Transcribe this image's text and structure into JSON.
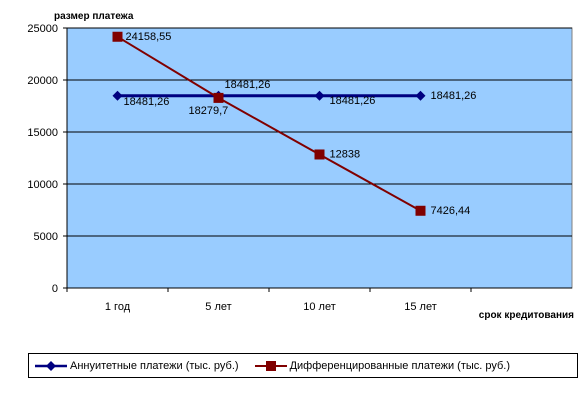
{
  "chart_data": {
    "type": "line",
    "ylabel": "размер платежа",
    "xlabel": "срок кредитования",
    "ylim": [
      0,
      25000
    ],
    "yticks": [
      0,
      5000,
      10000,
      15000,
      20000,
      25000
    ],
    "categories": [
      "1 год",
      "5 лет",
      "10 лет",
      "15 лет"
    ],
    "series": [
      {
        "name": "Аннуитетные платежи (тыс. руб.)",
        "color": "#000080",
        "marker": "diamond",
        "values": [
          18481.26,
          18481.26,
          18481.26,
          18481.26
        ],
        "labels": [
          "18481,26",
          "18481,26",
          "18481,26",
          "18481,26"
        ]
      },
      {
        "name": "Дифференцированные платежи (тыс. руб.)",
        "color": "#800000",
        "marker": "square",
        "values": [
          24158.55,
          18279.7,
          12838,
          7426.44
        ],
        "labels": [
          "24158,55",
          "18279,7",
          "12838",
          "7426,44"
        ]
      }
    ],
    "plot_background": "#99ccff",
    "grid": "horizontal",
    "legend": "bottom"
  }
}
